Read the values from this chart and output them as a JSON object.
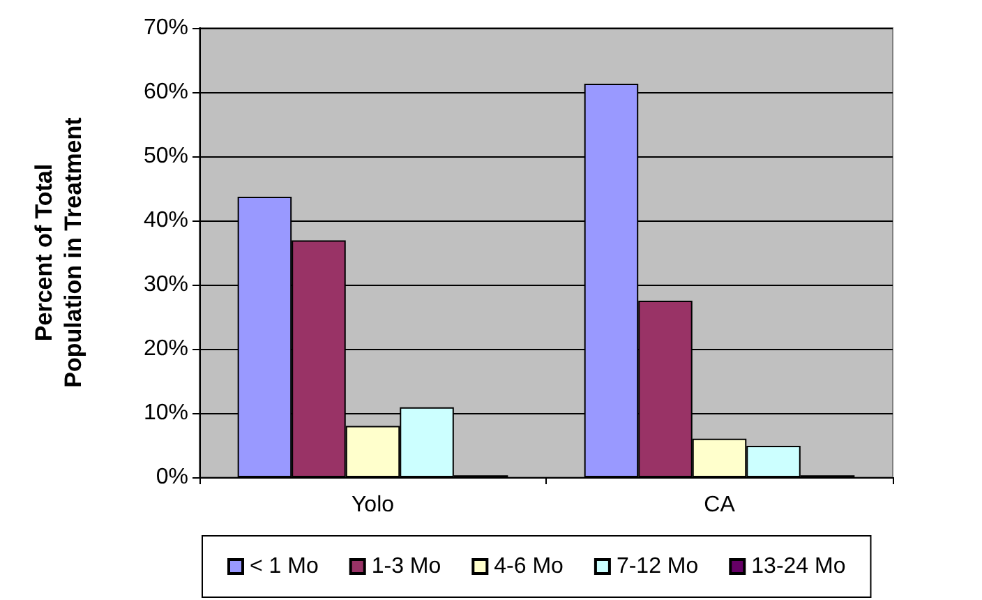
{
  "chart_data": {
    "type": "bar",
    "ylabel": "Percent of Total\nPopulation in Treatment",
    "categories": [
      "Yolo",
      "CA"
    ],
    "series": [
      {
        "name": "< 1 Mo",
        "color": "#9999ff",
        "values": [
          43.7,
          61.3
        ]
      },
      {
        "name": "1-3 Mo",
        "color": "#993366",
        "values": [
          36.9,
          27.5
        ]
      },
      {
        "name": "4-6 Mo",
        "color": "#ffffcc",
        "values": [
          8.0,
          6.0
        ]
      },
      {
        "name": "7-12 Mo",
        "color": "#ccffff",
        "values": [
          10.9,
          4.9
        ]
      },
      {
        "name": "13-24 Mo",
        "color": "#660066",
        "values": [
          0.3,
          0.3
        ]
      }
    ],
    "ylim": [
      0,
      70
    ],
    "yticks": [
      {
        "value": 0,
        "label": "0%"
      },
      {
        "value": 10,
        "label": "10%"
      },
      {
        "value": 20,
        "label": "20%"
      },
      {
        "value": 30,
        "label": "30%"
      },
      {
        "value": 40,
        "label": "40%"
      },
      {
        "value": 50,
        "label": "50%"
      },
      {
        "value": 60,
        "label": "60%"
      },
      {
        "value": 70,
        "label": "70%"
      }
    ],
    "grid": "y",
    "legend": "bottom"
  }
}
